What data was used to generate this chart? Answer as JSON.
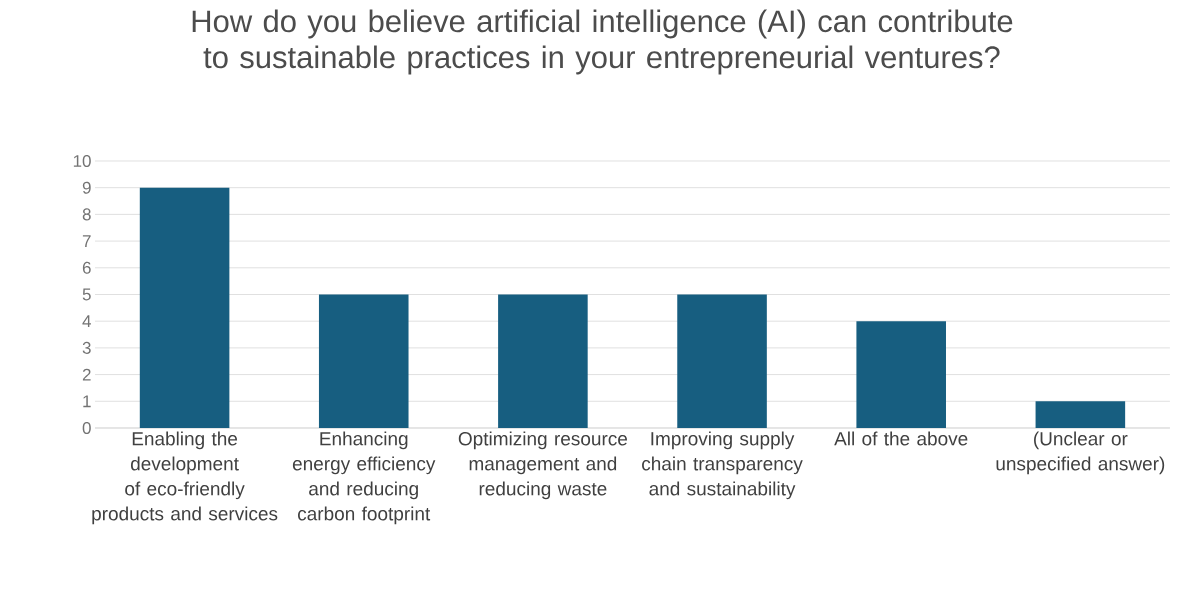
{
  "chart_data": {
    "type": "bar",
    "title": "How do you believe artificial intelligence (AI) can contribute to sustainable practices in your entrepreneurial ventures?",
    "categories": [
      "Enabling the development of eco-friendly products and services",
      "Enhancing energy efficiency and reducing carbon footprint",
      "Optimizing resource management and reducing waste",
      "Improving supply chain transparency and sustainability",
      "All of the above",
      "(Unclear or unspecified answer)"
    ],
    "values": [
      9,
      5,
      5,
      5,
      4,
      1
    ],
    "color": "#175e80",
    "ylim": [
      0,
      10
    ],
    "yticks": [
      0,
      1,
      2,
      3,
      4,
      5,
      6,
      7,
      8,
      9,
      10
    ],
    "grid": "y"
  }
}
